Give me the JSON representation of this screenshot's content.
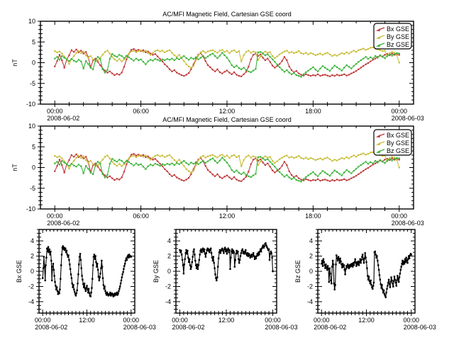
{
  "figure": {
    "background": "#ffffff",
    "title": "AC/MFI  Magnetic Field, Cartesian GSE coord"
  },
  "colors": {
    "bx": "#bf3a3a",
    "by": "#c8be3c",
    "bz": "#3cb43c",
    "black": "#000000",
    "axis": "#000000"
  },
  "series_data": {
    "hours_start": 0,
    "hours_end": 24,
    "bx": [
      -0.9,
      0.4,
      1.9,
      0.6,
      -1.2,
      0.8,
      1.8,
      3.0,
      2.6,
      3.2,
      2.5,
      2.9,
      2.2,
      2.6,
      1.4,
      -1.2,
      0.6,
      1.0,
      0.2,
      -0.6,
      -1.4,
      -1.9,
      -2.4,
      -2.1,
      -2.6,
      -3.0,
      -2.7,
      -2.9,
      -2.4,
      -1.0,
      0.8,
      2.2,
      3.1,
      3.3,
      2.9,
      3.1,
      2.8,
      3.0,
      2.5,
      2.7,
      2.2,
      1.9,
      2.1,
      1.5,
      0.9,
      0.3,
      -0.4,
      -0.9,
      -1.6,
      -2.1,
      -1.8,
      -2.4,
      -2.7,
      -3.0,
      -3.2,
      -2.9,
      -2.5,
      -1.6,
      -0.4,
      0.9,
      1.9,
      2.3,
      1.5,
      0.4,
      -0.6,
      -1.1,
      -1.7,
      -2.1,
      -1.6,
      -2.3,
      -2.6,
      -2.2,
      -1.9,
      -2.4,
      -2.8,
      -2.3,
      -2.9,
      -3.2,
      -3.3,
      -2.8,
      -2.2,
      -1.0,
      0.8,
      1.9,
      2.2,
      1.6,
      2.0,
      1.2,
      0.6,
      1.0,
      0.2,
      -0.7,
      -1.2,
      -0.8,
      -0.3,
      0.4,
      1.4,
      0.6,
      -0.9,
      -1.8,
      -2.3,
      -2.0,
      -2.6,
      -2.9,
      -3.1,
      -2.8,
      -3.0,
      -3.2,
      -3.0,
      -3.1,
      -2.8,
      -3.2,
      -3.0,
      -2.9,
      -3.1,
      -3.3,
      -3.0,
      -3.2,
      -2.9,
      -3.1,
      -3.0,
      -2.8,
      -3.1,
      -2.9,
      -2.6,
      -2.3,
      -2.0,
      -1.6,
      -1.2,
      -0.8,
      -0.4,
      -0.1,
      0.3,
      0.7,
      1.0,
      1.4,
      1.7,
      1.5,
      1.9,
      2.1,
      1.8,
      2.2,
      1.9,
      2.0,
      1.9
    ],
    "by": [
      2.8,
      2.5,
      2.7,
      2.2,
      1.5,
      0.8,
      -0.3,
      0.9,
      1.6,
      2.4,
      2.8,
      2.3,
      2.7,
      1.8,
      1.2,
      1.6,
      0.8,
      0.3,
      0.6,
      1.2,
      1.9,
      2.6,
      2.9,
      2.2,
      1.4,
      0.8,
      0.4,
      0.9,
      0.3,
      0.8,
      1.5,
      2.2,
      2.7,
      2.9,
      2.5,
      2.8,
      3.0,
      2.6,
      2.9,
      2.3,
      1.9,
      2.4,
      2.8,
      3.0,
      2.7,
      2.9,
      2.5,
      2.8,
      3.0,
      2.4,
      1.8,
      1.4,
      1.9,
      1.1,
      0.4,
      -0.4,
      -0.9,
      -1.2,
      -0.8,
      0.6,
      1.7,
      2.5,
      2.8,
      2.4,
      2.7,
      2.9,
      3.0,
      2.7,
      2.4,
      2.9,
      3.1,
      2.6,
      2.9,
      2.3,
      2.8,
      3.0,
      2.5,
      2.8,
      0.3,
      1.8,
      2.6,
      2.9,
      2.4,
      2.7,
      2.5,
      0.6,
      1.5,
      2.3,
      2.7,
      2.4,
      2.6,
      1.6,
      1.1,
      1.5,
      2.0,
      2.4,
      2.7,
      2.9,
      2.4,
      2.6,
      2.3,
      2.5,
      2.8,
      2.3,
      2.1,
      2.4,
      2.0,
      2.3,
      2.1,
      1.8,
      2.0,
      2.2,
      1.9,
      2.2,
      2.4,
      2.0,
      1.6,
      1.9,
      1.7,
      2.0,
      2.3,
      2.1,
      2.5,
      2.2,
      2.6,
      2.9,
      2.6,
      3.0,
      3.2,
      3.4,
      3.1,
      3.3,
      3.6,
      3.7,
      3.4,
      3.2,
      3.0,
      2.8,
      2.9,
      1.5,
      2.3,
      2.6,
      2.4,
      1.8,
      0.0
    ],
    "bz": [
      1.0,
      1.4,
      0.7,
      1.6,
      1.2,
      0.8,
      0.4,
      0.9,
      0.5,
      0.2,
      0.7,
      0.3,
      -1.4,
      0.4,
      -0.3,
      -1.2,
      -1.6,
      0.6,
      1.4,
      0.9,
      -1.6,
      -2.4,
      -1.8,
      0.9,
      2.1,
      1.7,
      1.4,
      1.9,
      1.6,
      1.1,
      1.7,
      1.3,
      0.9,
      0.5,
      1.0,
      0.6,
      0.8,
      0.2,
      -0.4,
      0.3,
      0.7,
      0.5,
      0.9,
      0.7,
      0.4,
      0.8,
      0.6,
      0.9,
      0.7,
      1.0,
      0.6,
      1.1,
      0.8,
      1.2,
      1.6,
      1.1,
      0.7,
      1.2,
      0.9,
      1.3,
      0.8,
      1.2,
      1.6,
      1.1,
      1.5,
      1.9,
      2.2,
      1.6,
      1.1,
      1.7,
      2.4,
      1.8,
      1.2,
      0.4,
      -0.6,
      -1.1,
      -0.7,
      -1.3,
      -1.6,
      -1.2,
      -1.8,
      -2.1,
      -2.3,
      -1.9,
      -1.5,
      2.5,
      2.6,
      2.2,
      1.8,
      2.0,
      1.4,
      0.8,
      0.2,
      -0.5,
      -1.1,
      -1.7,
      -2.2,
      -1.8,
      -2.4,
      -2.8,
      -2.5,
      -3.0,
      -3.2,
      -3.4,
      -2.8,
      -2.3,
      -1.9,
      -1.5,
      -1.1,
      -1.7,
      -2.1,
      -1.4,
      -0.8,
      -1.2,
      -1.6,
      -2.0,
      -1.3,
      -0.7,
      -1.1,
      -1.5,
      -1.9,
      -1.2,
      -0.6,
      -1.0,
      -1.4,
      -0.8,
      -0.3,
      0.2,
      0.6,
      1.0,
      1.4,
      0.9,
      1.3,
      1.0,
      1.6,
      1.2,
      1.8,
      1.4,
      1.1,
      1.6,
      2.0,
      1.7,
      2.1,
      2.3,
      2.2
    ]
  },
  "chart_data": [
    {
      "id": "overview-top",
      "type": "line",
      "title": "AC/MFI  Magnetic Field, Cartesian GSE coord",
      "ylabel": "nT",
      "ylim": [
        -10,
        10
      ],
      "y_major_ticks": [
        10,
        5,
        0,
        -5,
        -10
      ],
      "y_minor_step": 1,
      "x_major_hours": [
        0,
        6,
        12,
        18,
        24
      ],
      "x_tick_labels": [
        "00:00",
        "06:00",
        "12:00",
        "18:00",
        "00:00"
      ],
      "x_minor_step_hours": 1,
      "x_date_labels": [
        {
          "hour": 0,
          "text": "2008-06-02"
        },
        {
          "hour": 24,
          "text": "2008-06-03"
        }
      ],
      "grid": false,
      "legend_position": "top-right",
      "legend": [
        {
          "label": "Bx GSE",
          "series": "bx",
          "color": "#bf3a3a"
        },
        {
          "label": "By GSE",
          "series": "by",
          "color": "#c8be3c"
        },
        {
          "label": "Bz GSE",
          "series": "bz",
          "color": "#3cb43c"
        }
      ],
      "series": [
        {
          "name": "Bx GSE",
          "key": "bx",
          "color": "#bf3a3a"
        },
        {
          "name": "By GSE",
          "key": "by",
          "color": "#c8be3c"
        },
        {
          "name": "Bz GSE",
          "key": "bz",
          "color": "#3cb43c"
        }
      ]
    },
    {
      "id": "overview-middle",
      "type": "line",
      "title": "AC/MFI  Magnetic Field, Cartesian GSE coord",
      "ylabel": "nT",
      "ylim": [
        -10,
        10
      ],
      "y_major_ticks": [
        10,
        5,
        0,
        -5,
        -10
      ],
      "y_minor_step": 1,
      "x_major_hours": [
        0,
        6,
        12,
        18,
        24
      ],
      "x_tick_labels": [
        "00:00",
        "06:00",
        "12:00",
        "18:00",
        "00:00"
      ],
      "x_minor_step_hours": 1,
      "x_date_labels": [
        {
          "hour": 0,
          "text": "2008-06-02"
        },
        {
          "hour": 24,
          "text": "2008-06-03"
        }
      ],
      "grid": false,
      "legend_position": "top-right",
      "legend": [
        {
          "label": "Bx GSE",
          "series": "bx",
          "color": "#bf3a3a"
        },
        {
          "label": "By GSE",
          "series": "by",
          "color": "#c8be3c"
        },
        {
          "label": "Bz GSE",
          "series": "bz",
          "color": "#3cb43c"
        }
      ],
      "series": [
        {
          "name": "Bx GSE",
          "key": "bx",
          "color": "#bf3a3a"
        },
        {
          "name": "By GSE",
          "key": "by",
          "color": "#c8be3c"
        },
        {
          "name": "Bz GSE",
          "key": "bz",
          "color": "#3cb43c"
        }
      ]
    },
    {
      "id": "detail-bx",
      "type": "line",
      "title": "",
      "ylabel": "Bx GSE",
      "ylim": [
        -5.5,
        5.5
      ],
      "y_major_ticks": [
        4,
        2,
        0,
        -2,
        -4
      ],
      "y_minor_step": 0.5,
      "x_major_hours": [
        0,
        12,
        24
      ],
      "x_tick_labels": [
        "00:00",
        "12:00",
        "00:00"
      ],
      "x_minor_step_hours": 1,
      "x_date_labels": [
        {
          "hour": 0,
          "text": "2008-06-02"
        },
        {
          "hour": 24,
          "text": "2008-06-03"
        }
      ],
      "grid": false,
      "series": [
        {
          "name": "Bx GSE",
          "key": "bx",
          "color": "#000000"
        }
      ]
    },
    {
      "id": "detail-by",
      "type": "line",
      "title": "",
      "ylabel": "By GSE",
      "ylim": [
        -5.5,
        5.5
      ],
      "y_major_ticks": [
        4,
        2,
        0,
        -2,
        -4
      ],
      "y_minor_step": 0.5,
      "x_major_hours": [
        0,
        12,
        24
      ],
      "x_tick_labels": [
        "00:00",
        "12:00",
        "00:00"
      ],
      "x_minor_step_hours": 1,
      "x_date_labels": [
        {
          "hour": 0,
          "text": "2008-06-02"
        },
        {
          "hour": 24,
          "text": "2008-06-03"
        }
      ],
      "grid": false,
      "series": [
        {
          "name": "By GSE",
          "key": "by",
          "color": "#000000"
        }
      ]
    },
    {
      "id": "detail-bz",
      "type": "line",
      "title": "",
      "ylabel": "Bz GSE",
      "ylim": [
        -5.5,
        5.5
      ],
      "y_major_ticks": [
        4,
        2,
        0,
        -2,
        -4
      ],
      "y_minor_step": 0.5,
      "x_major_hours": [
        0,
        12,
        24
      ],
      "x_tick_labels": [
        "00:00",
        "12:00",
        "00:00"
      ],
      "x_minor_step_hours": 1,
      "x_date_labels": [
        {
          "hour": 0,
          "text": "2008-06-02"
        },
        {
          "hour": 24,
          "text": "2008-06-03"
        }
      ],
      "grid": false,
      "series": [
        {
          "name": "Bz GSE",
          "key": "bz",
          "color": "#000000"
        }
      ]
    }
  ]
}
